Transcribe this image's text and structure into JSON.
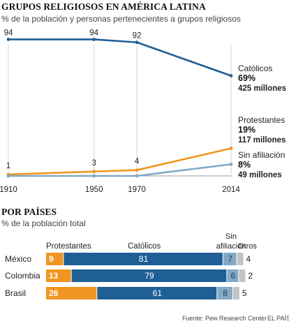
{
  "title": "GRUPOS RELIGIOSOS EN AMÉRICA LATINA",
  "subtitle": "% de la población y personas pertenecientes a grupos religiosos",
  "section2_title": "POR PAÍSES",
  "section2_subtitle": "% de la población total",
  "source": "Fuente: Pew Research Center",
  "publisher": "EL PAÍS",
  "colors": {
    "catolicos": "#1f5f96",
    "protestantes": "#f0951f",
    "sin_afiliacion": "#82a9c6",
    "otros": "#c4c4c4"
  },
  "chart_data": [
    {
      "type": "line",
      "x": [
        1910,
        1950,
        1970,
        2014
      ],
      "ylim": [
        0,
        100
      ],
      "grid": true,
      "series": [
        {
          "name": "Católicos",
          "values": [
            94,
            94,
            92,
            69
          ],
          "point_labels": [
            "94",
            "94",
            "92",
            null
          ],
          "end_label": [
            "Católicos",
            "69%",
            "425 millones"
          ],
          "color": "#1f5f96"
        },
        {
          "name": "Protestantes",
          "values": [
            1,
            3,
            4,
            19
          ],
          "point_labels": [
            "1",
            "3",
            "4",
            null
          ],
          "end_label": [
            "Protestantes",
            "19%",
            "117 millones"
          ],
          "color": "#f0951f"
        },
        {
          "name": "Sin afiliación",
          "values": [
            0,
            0,
            0,
            8
          ],
          "point_labels": [
            null,
            null,
            null,
            null
          ],
          "end_label": [
            "Sin afiliación",
            "8%",
            "49 millones"
          ],
          "color": "#82a9c6"
        }
      ]
    },
    {
      "type": "bar",
      "stacked": true,
      "orientation": "horizontal",
      "categories": [
        "México",
        "Colombia",
        "Brasil"
      ],
      "series": [
        {
          "name": "Protestantes",
          "values": [
            9,
            13,
            26
          ],
          "color": "#f0951f"
        },
        {
          "name": "Católicos",
          "values": [
            81,
            79,
            61
          ],
          "color": "#1f5f96"
        },
        {
          "name": "Sin afiliación",
          "values": [
            7,
            6,
            8
          ],
          "color": "#82a9c6"
        },
        {
          "name": "Otros",
          "values": [
            4,
            2,
            5
          ],
          "color": "#c4c4c4"
        }
      ]
    }
  ]
}
